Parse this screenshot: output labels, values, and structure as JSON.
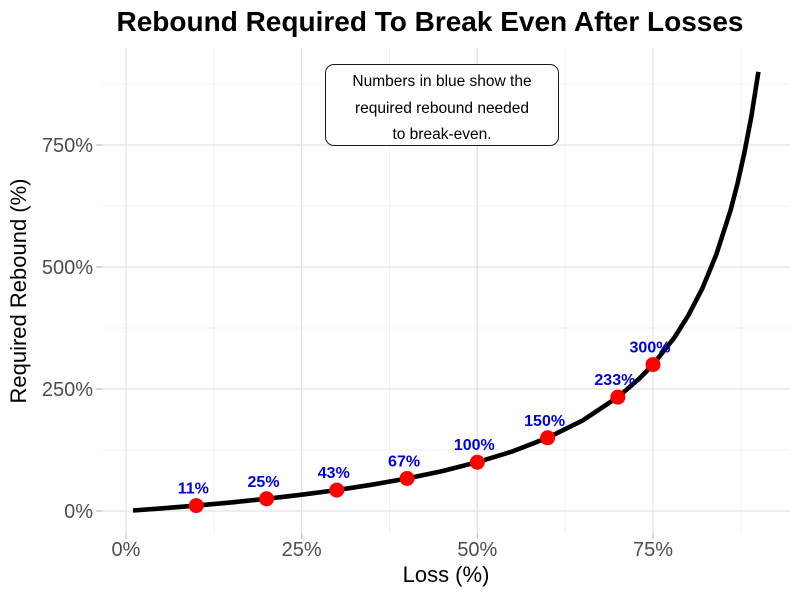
{
  "annotation": {
    "lines": [
      "Numbers in blue show the",
      "required rebound needed",
      "to break-even."
    ]
  },
  "chart_data": {
    "type": "line",
    "title": "Rebound Required To Break Even After Losses",
    "xlabel": "Loss (%)",
    "ylabel": "Required Rebound (%)",
    "xlim": [
      0,
      94.5
    ],
    "ylim": [
      0,
      945
    ],
    "grid": "on",
    "legend": "none",
    "x_tick_values": [
      0,
      25,
      50,
      75
    ],
    "x_tick_labels": [
      "0%",
      "25%",
      "50%",
      "75%"
    ],
    "x_minor_values": [
      12.5,
      37.5,
      62.5,
      87.5
    ],
    "y_tick_values": [
      0,
      250,
      500,
      750
    ],
    "y_tick_labels": [
      "0%",
      "250%",
      "500%",
      "750%"
    ],
    "y_minor_values": [
      125,
      375,
      625,
      875
    ],
    "curve_formula": "rebound% = loss% / (100 - loss%) * 100",
    "curve_points": {
      "loss": [
        1,
        5,
        10,
        15,
        20,
        25,
        30,
        35,
        40,
        45,
        50,
        55,
        60,
        65,
        70,
        73,
        75,
        78,
        80,
        82,
        84,
        86,
        87,
        88,
        89,
        90
      ],
      "rebound": [
        1.0,
        5.3,
        11.1,
        17.6,
        25.0,
        33.3,
        42.9,
        53.8,
        66.7,
        81.8,
        100.0,
        122.2,
        150.0,
        185.7,
        233.3,
        270.4,
        300.0,
        354.5,
        400.0,
        455.6,
        525.0,
        614.3,
        669.2,
        733.3,
        809.1,
        900.0
      ]
    },
    "points": [
      {
        "loss": 10,
        "rebound": 11.1,
        "label": "11%"
      },
      {
        "loss": 20,
        "rebound": 25.0,
        "label": "25%"
      },
      {
        "loss": 30,
        "rebound": 42.9,
        "label": "43%"
      },
      {
        "loss": 40,
        "rebound": 66.7,
        "label": "67%"
      },
      {
        "loss": 50,
        "rebound": 100.0,
        "label": "100%"
      },
      {
        "loss": 60,
        "rebound": 150.0,
        "label": "150%"
      },
      {
        "loss": 70,
        "rebound": 233.3,
        "label": "233%"
      },
      {
        "loss": 75,
        "rebound": 300.0,
        "label": "300%"
      }
    ],
    "colors": {
      "curve": "#000000",
      "points": "#ff0000",
      "point_labels": "#0000dd",
      "tick_text": "#4d4d4d",
      "grid_major": "#e4e4e4",
      "grid_minor": "#f1f1f1",
      "tick_mark": "#c2c2c2",
      "background": "#ffffff"
    }
  }
}
